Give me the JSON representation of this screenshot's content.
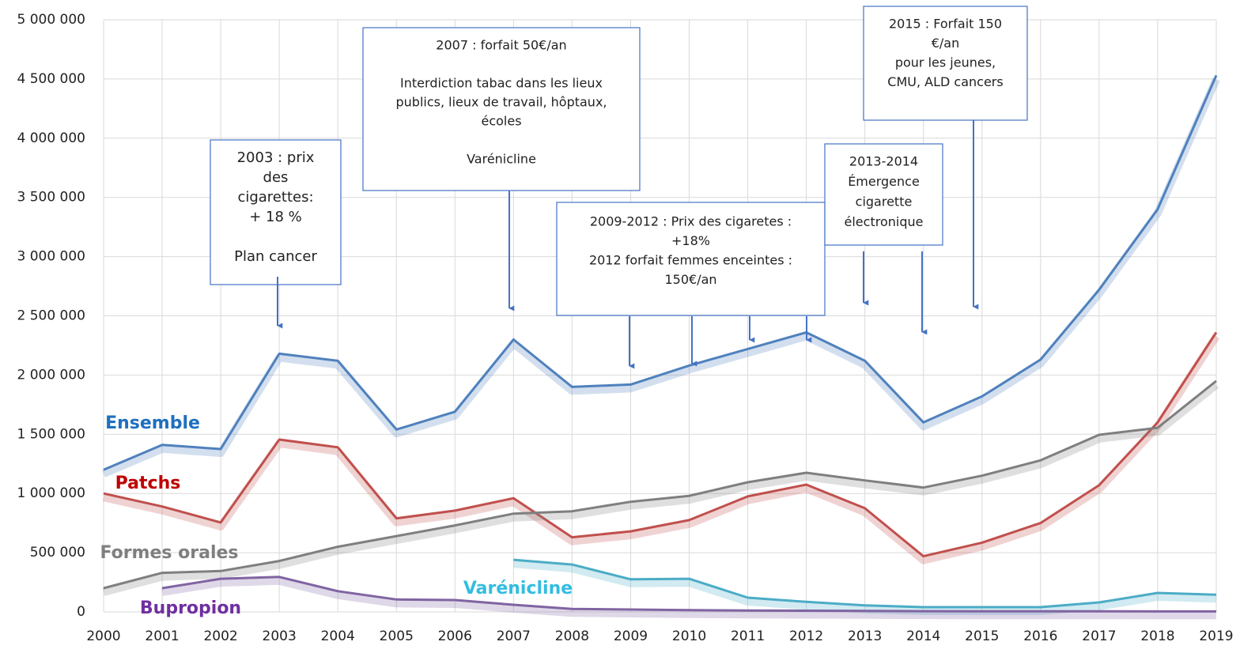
{
  "chart_data": {
    "type": "line",
    "categories": [
      "2000",
      "2001",
      "2002",
      "2003",
      "2004",
      "2005",
      "2006",
      "2007",
      "2008",
      "2009",
      "2010",
      "2011",
      "2012",
      "2013",
      "2014",
      "2015",
      "2016",
      "2017",
      "2018",
      "2019"
    ],
    "ylim": [
      0,
      5000000
    ],
    "yticks": [
      0,
      {
        "value": 500000,
        "label": "500 000"
      },
      {
        "value": 1000000,
        "label": "1 000 000"
      },
      {
        "value": 1500000,
        "label": "1 500 000"
      },
      {
        "value": 2000000,
        "label": "2 000 000"
      },
      {
        "value": 2500000,
        "label": "2 500 000"
      },
      {
        "value": 3000000,
        "label": "3 000 000"
      },
      {
        "value": 3500000,
        "label": "3 500 000"
      },
      {
        "value": 4000000,
        "label": "4 000 000"
      },
      {
        "value": 4500000,
        "label": "4 500 000"
      },
      {
        "value": 5000000,
        "label": "5 000 000"
      }
    ],
    "grid": true,
    "series": [
      {
        "name": "Ensemble",
        "color": "#4f81bd",
        "label_color": "#1f6fbf",
        "values": [
          1200000,
          1410000,
          1375000,
          2180000,
          2120000,
          1540000,
          1690000,
          2300000,
          1900000,
          1920000,
          2080000,
          2220000,
          2360000,
          2120000,
          1600000,
          1820000,
          2130000,
          2720000,
          3400000,
          4530000
        ]
      },
      {
        "name": "Patchs",
        "color": "#c0504d",
        "label_color": "#c00000",
        "values": [
          1000000,
          890000,
          755000,
          1455000,
          1390000,
          790000,
          855000,
          960000,
          630000,
          680000,
          775000,
          975000,
          1075000,
          875000,
          470000,
          585000,
          750000,
          1070000,
          1600000,
          2360000
        ]
      },
      {
        "name": "Formes orales",
        "color": "#7f7f7f",
        "label_color": "#7f7f7f",
        "values": [
          200000,
          330000,
          345000,
          430000,
          550000,
          640000,
          730000,
          830000,
          850000,
          930000,
          980000,
          1095000,
          1175000,
          1110000,
          1050000,
          1150000,
          1280000,
          1495000,
          1555000,
          1950000
        ]
      },
      {
        "name": "Varénicline",
        "color": "#4bacc6",
        "label_color": "#33bde0",
        "values": [
          null,
          null,
          null,
          null,
          null,
          null,
          null,
          440000,
          400000,
          275000,
          280000,
          120000,
          85000,
          55000,
          40000,
          40000,
          40000,
          80000,
          160000,
          145000
        ]
      },
      {
        "name": "Bupropion",
        "color": "#8064a2",
        "label_color": "#7030a0",
        "values": [
          null,
          200000,
          280000,
          295000,
          175000,
          105000,
          100000,
          60000,
          25000,
          20000,
          15000,
          12000,
          10000,
          8000,
          6000,
          5000,
          5000,
          5000,
          4000,
          4000
        ]
      }
    ],
    "annotations": [
      {
        "paragraphs": [
          [
            "2003 : prix",
            "des",
            "cigarettes:",
            "+ 18 %"
          ],
          [
            "Plan cancer"
          ]
        ]
      },
      {
        "paragraphs": [
          [
            "2007 : forfait  50€/an"
          ],
          [
            "Interdiction tabac dans les lieux",
            "publics, lieux de travail, hôptaux,",
            "écoles"
          ],
          [
            "Varénicline"
          ]
        ]
      },
      {
        "paragraphs": [
          [
            "2009-2012 : Prix des cigaretes :",
            "+18%",
            "2012 forfait  femmes enceintes :",
            "150€/an"
          ]
        ]
      },
      {
        "paragraphs": [
          [
            "2013-2014",
            "Émergence",
            "cigarette",
            "électronique"
          ]
        ]
      },
      {
        "paragraphs": [
          [
            "2015 : Forfait 150",
            "€/an",
            "pour les jeunes,",
            "CMU, ALD cancers"
          ]
        ]
      }
    ]
  }
}
